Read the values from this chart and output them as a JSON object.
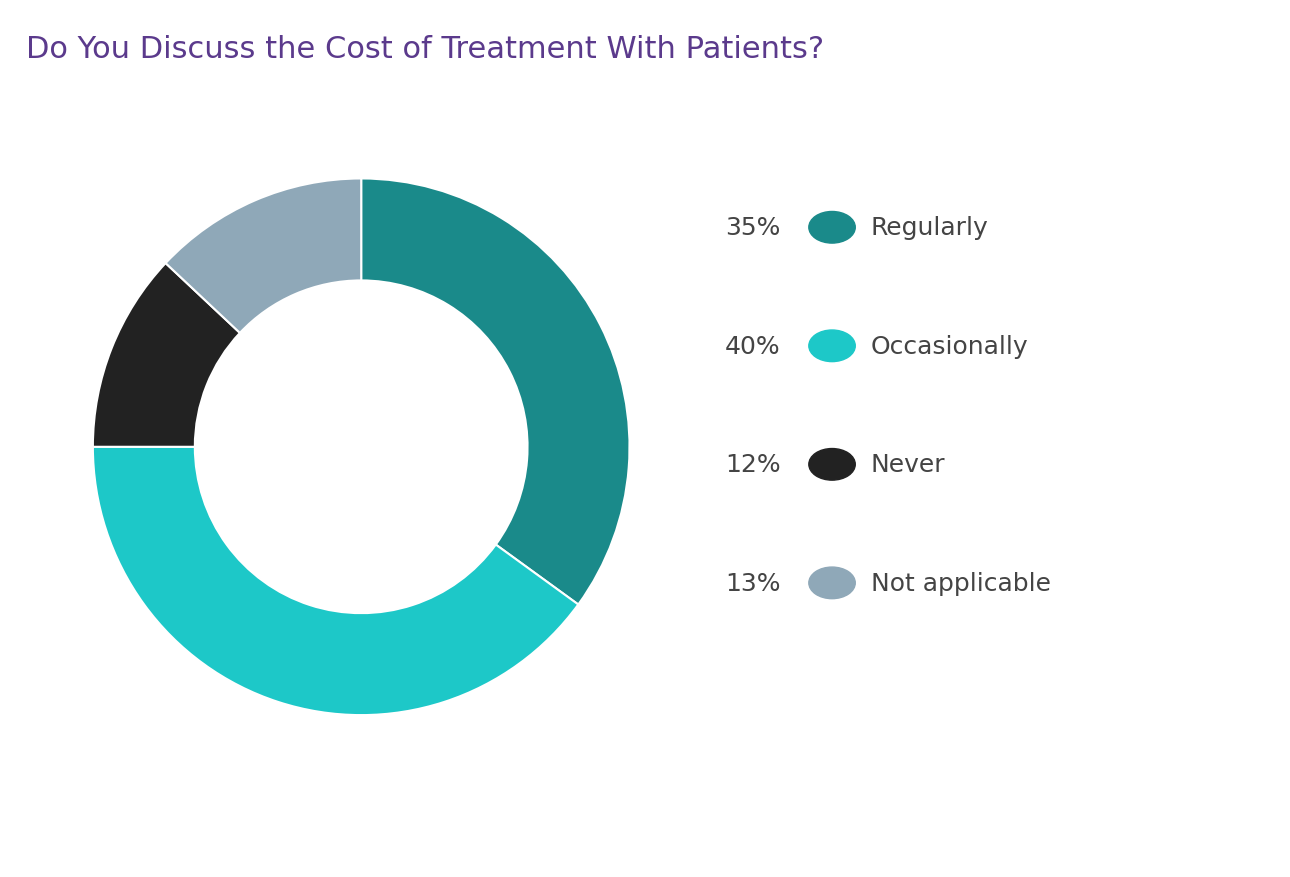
{
  "title": "Do You Discuss the Cost of Treatment With Patients?",
  "title_color": "#5b3a8c",
  "title_fontsize": 22,
  "slices": [
    35,
    40,
    12,
    13
  ],
  "labels": [
    "Regularly",
    "Occasionally",
    "Never",
    "Not applicable"
  ],
  "percentages": [
    "35%",
    "40%",
    "12%",
    "13%"
  ],
  "colors": [
    "#1a8a8a",
    "#1dc8c8",
    "#222222",
    "#8fa8b8"
  ],
  "background_color": "#ffffff",
  "legend_fontsize": 18,
  "pct_fontsize": 18,
  "donut_width": 0.38
}
